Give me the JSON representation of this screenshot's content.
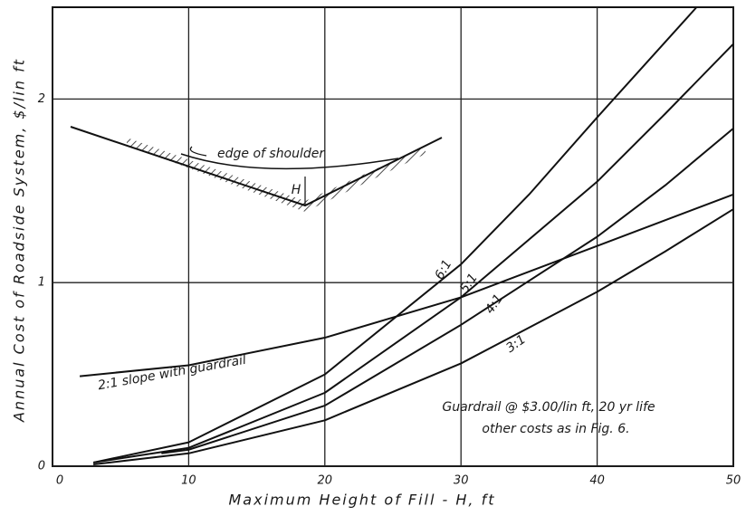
{
  "chart_data": {
    "type": "line",
    "x_label": "Maximum Height of Fill - H, ft",
    "y_label": "Annual Cost of Roadside System, $/lin ft",
    "annotations": [
      "Guardrail @ $3.00/lin ft, 20 yr life",
      "other costs as in Fig. 6."
    ],
    "inset": {
      "shoulder_label": "edge of shoulder",
      "height_label": "H"
    },
    "xlim": [
      0,
      50
    ],
    "ylim": [
      0,
      2.5
    ],
    "xticks": [
      0,
      10,
      20,
      30,
      40,
      50
    ],
    "yticks": [
      0,
      1,
      2
    ],
    "grid": true,
    "series": [
      {
        "name": "6:1",
        "color": "#111111",
        "x": [
          3,
          10,
          20,
          30,
          35,
          40,
          47.3
        ],
        "values": [
          0.02,
          0.13,
          0.5,
          1.1,
          1.48,
          1.9,
          2.5
        ]
      },
      {
        "name": "5:1",
        "color": "#111111",
        "x": [
          3,
          10,
          20,
          30,
          40,
          45,
          50
        ],
        "values": [
          0.02,
          0.1,
          0.4,
          0.92,
          1.55,
          1.92,
          2.3
        ]
      },
      {
        "name": "4:1",
        "color": "#111111",
        "x": [
          8,
          10,
          20,
          30,
          40,
          45,
          50
        ],
        "values": [
          0.07,
          0.09,
          0.33,
          0.77,
          1.25,
          1.53,
          1.84
        ]
      },
      {
        "name": "3:1",
        "color": "#111111",
        "x": [
          3,
          10,
          20,
          30,
          40,
          45,
          50
        ],
        "values": [
          0.01,
          0.07,
          0.25,
          0.56,
          0.95,
          1.17,
          1.4
        ]
      },
      {
        "name": "2:1 slope with guardrail",
        "color": "#111111",
        "x": [
          2,
          10,
          20,
          30,
          40,
          50
        ],
        "values": [
          0.49,
          0.55,
          0.7,
          0.92,
          1.2,
          1.48
        ]
      }
    ]
  }
}
